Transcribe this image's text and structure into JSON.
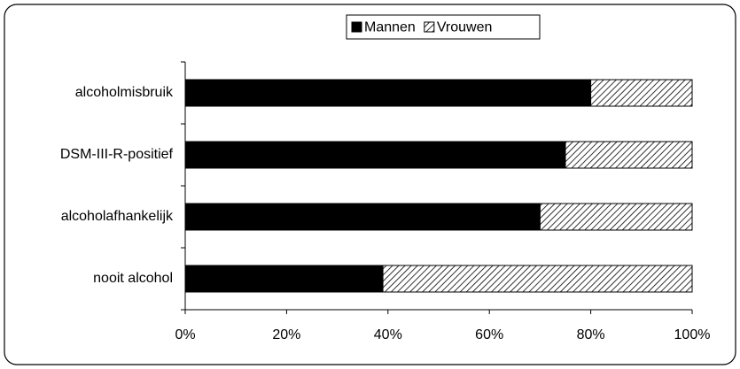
{
  "chart_data": {
    "type": "stacked-barh",
    "categories": [
      "alcoholmisbruik",
      "DSM-III-R-positief",
      "alcoholafhankelijk",
      "nooit alcohol"
    ],
    "series": [
      {
        "name": "Mannen",
        "color": "#000000",
        "pattern": "solid",
        "values": [
          80,
          75,
          70,
          39
        ]
      },
      {
        "name": "Vrouwen",
        "color": "#000000",
        "pattern": "hatch",
        "values": [
          20,
          25,
          30,
          61
        ]
      }
    ],
    "xlim": [
      0,
      100
    ],
    "xticks": [
      {
        "value": 0,
        "label": "0%"
      },
      {
        "value": 20,
        "label": "20%"
      },
      {
        "value": 40,
        "label": "40%"
      },
      {
        "value": 60,
        "label": "60%"
      },
      {
        "value": 80,
        "label": "80%"
      },
      {
        "value": 100,
        "label": "100%"
      }
    ],
    "legend": "top"
  }
}
